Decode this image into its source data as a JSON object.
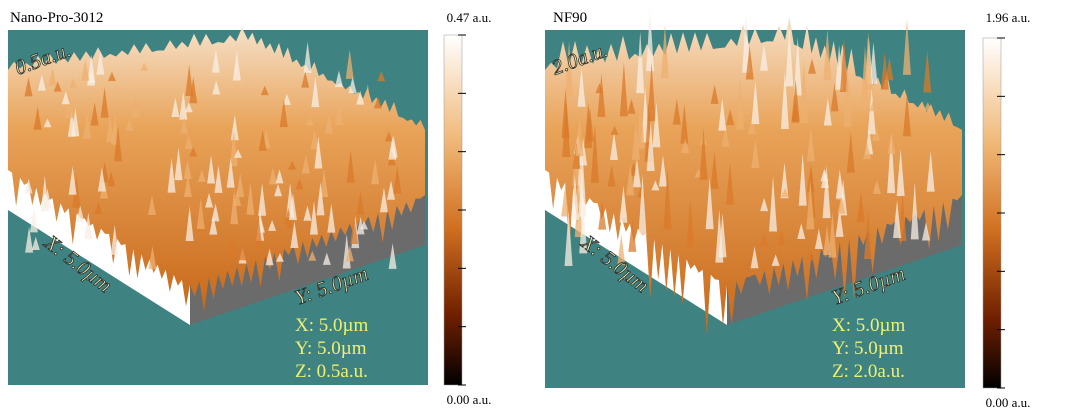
{
  "panels": [
    {
      "title": "Nano-Pro-3012",
      "colorbar": {
        "max": "0.47 a.u.",
        "min": "0.00 a.u."
      },
      "surface_labels": {
        "z": "0.5a.u.",
        "x": "X: 5.0µm",
        "y": "Y: 5.0µm"
      },
      "info": [
        "X: 5.0µm",
        "Y: 5.0µm",
        "Z: 0.5a.u."
      ]
    },
    {
      "title": "NF90",
      "colorbar": {
        "max": "1.96 a.u.",
        "min": "0.00 a.u."
      },
      "surface_labels": {
        "z": "2.0a.u.",
        "x": "X: 5.0µm",
        "y": "Y: 5.0µm"
      },
      "info": [
        "X: 5.0µm",
        "Y: 5.0µm",
        "Z: 2.0a.u."
      ]
    }
  ]
}
